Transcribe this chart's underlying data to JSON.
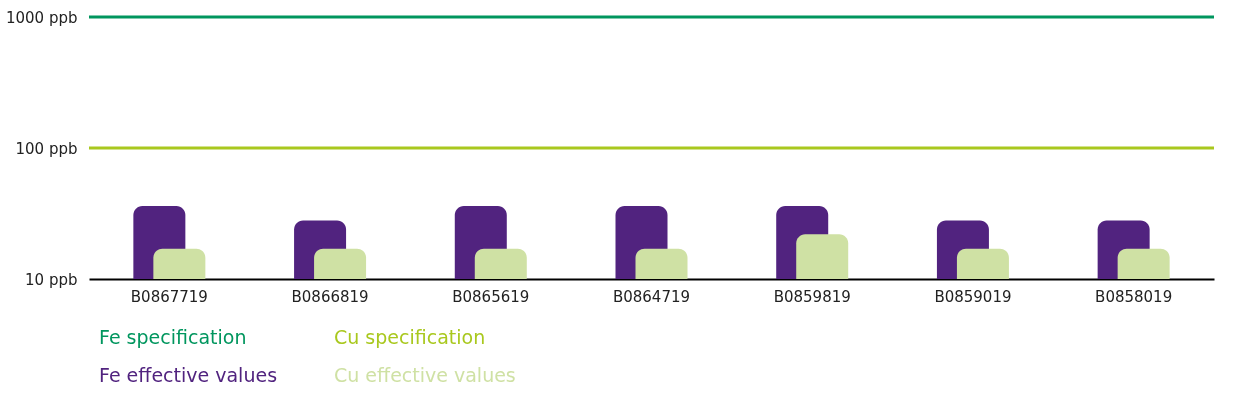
{
  "chart_data": {
    "type": "bar",
    "categories": [
      "B0867719",
      "B0866819",
      "B0865619",
      "B0864719",
      "B0859819",
      "B0859019",
      "B0858019"
    ],
    "series": [
      {
        "name": "Fe effective values",
        "color": "#51237f",
        "values": [
          36,
          28,
          36,
          36,
          36,
          28,
          28
        ]
      },
      {
        "name": "Cu effective values",
        "color": "#cfe1a4",
        "values": [
          17,
          17,
          17,
          17,
          22,
          17,
          17
        ]
      }
    ],
    "ref_lines": [
      {
        "axis": "y",
        "value": 1000,
        "label": "Fe specification",
        "color": "#00965e"
      },
      {
        "axis": "y",
        "value": 100,
        "label": "Cu specification",
        "color": "#a9c81e"
      }
    ],
    "log": "y",
    "ylim": [
      10,
      1000
    ],
    "yticks": [
      {
        "value": 10,
        "label": "10 ppb"
      },
      {
        "value": 100,
        "label": "100 ppb"
      },
      {
        "value": 1000,
        "label": "1000 ppb"
      }
    ],
    "legend": "bottom left"
  }
}
